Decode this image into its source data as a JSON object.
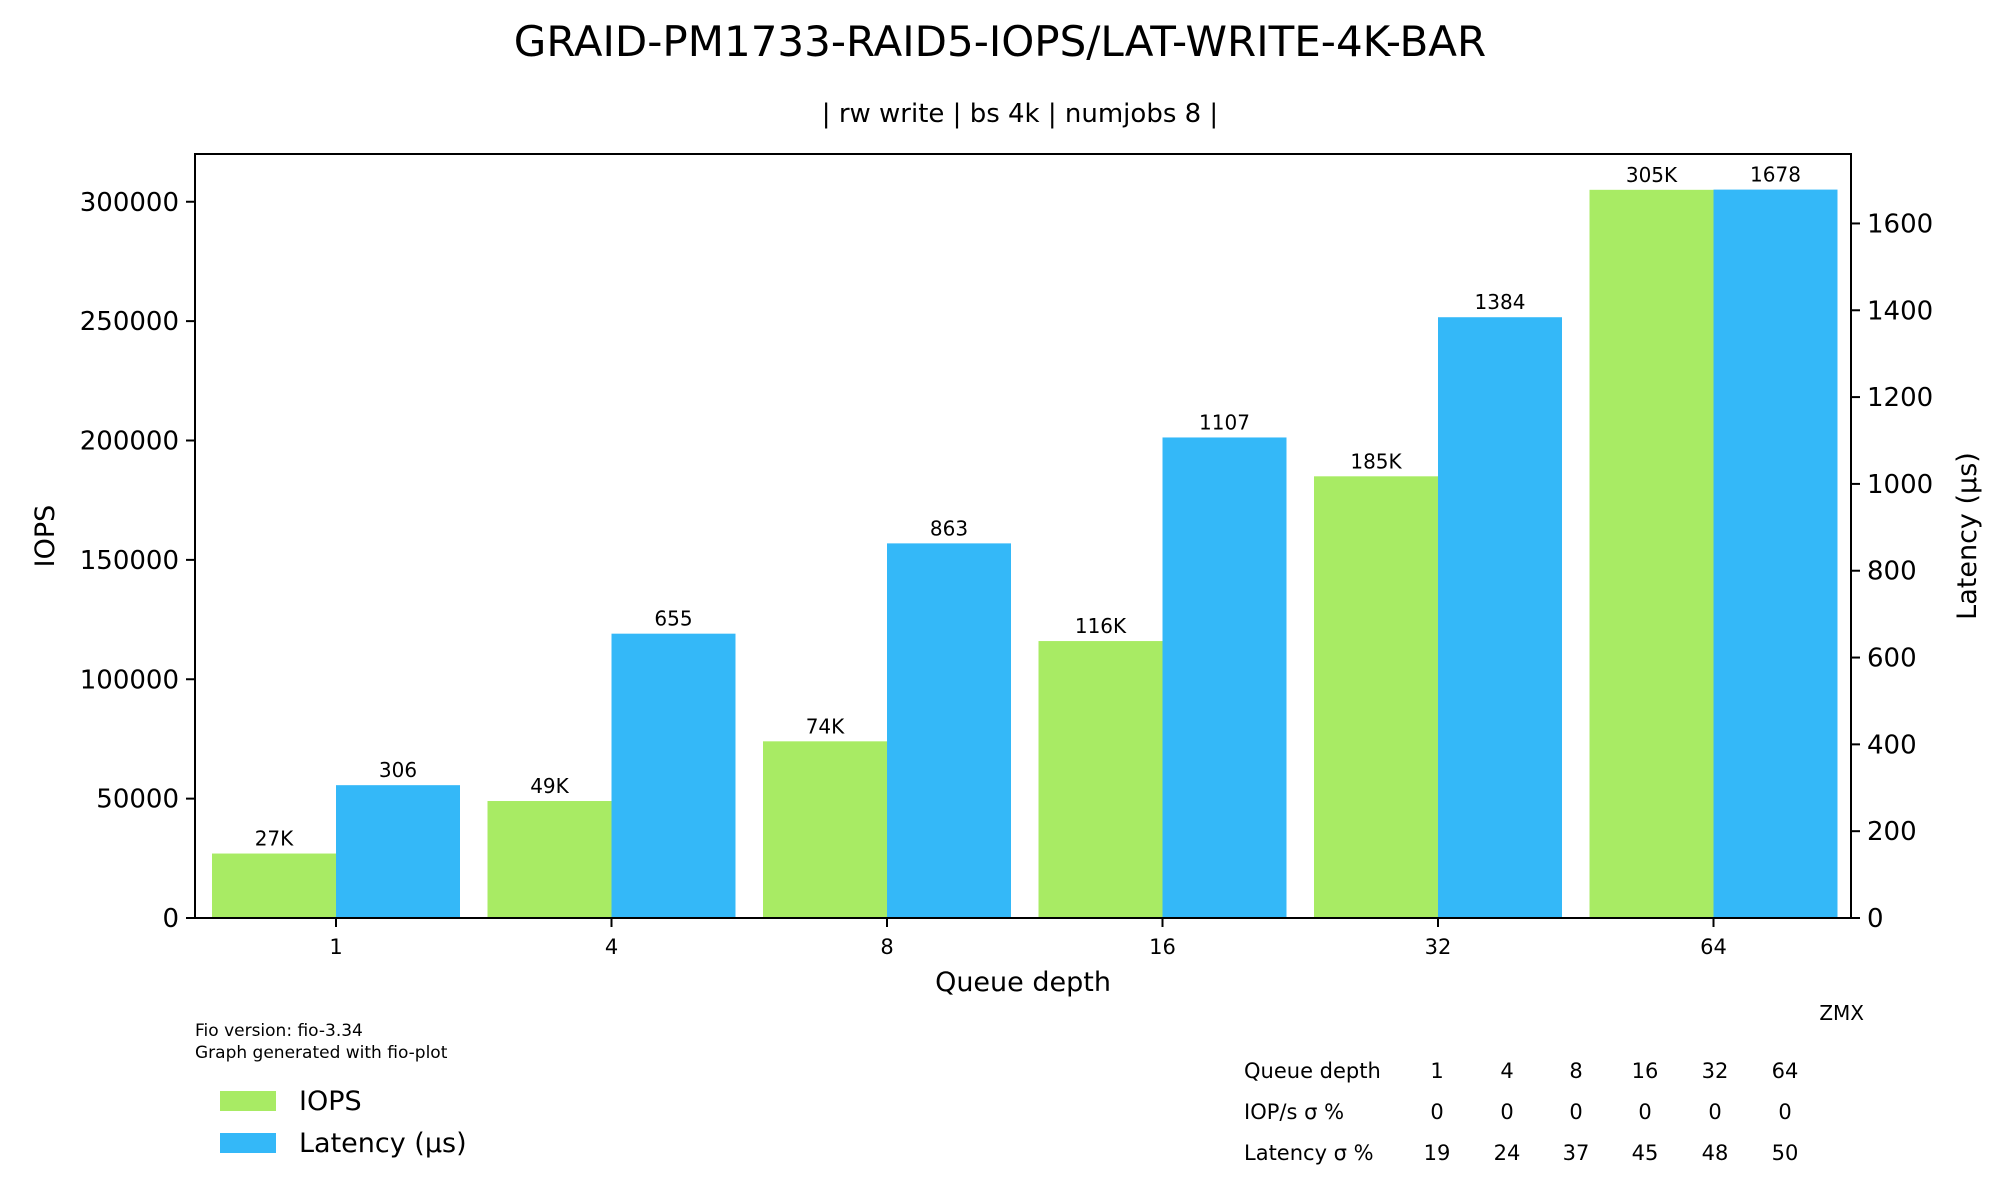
{
  "title": "GRAID-PM1733-RAID5-IOPS/LAT-WRITE-4K-BAR",
  "subtitle": "| rw write | bs 4k | numjobs 8 |",
  "chart_data": {
    "type": "bar",
    "categories": [
      "1",
      "4",
      "8",
      "16",
      "32",
      "64"
    ],
    "xlabel": "Queue depth",
    "ylabel_left": "IOPS",
    "ylabel_right": "Latency (µs)",
    "ylim_left": [
      0,
      320000
    ],
    "ylim_right": [
      0,
      1760
    ],
    "yticks_left": [
      "0",
      "50000",
      "100000",
      "150000",
      "200000",
      "250000",
      "300000"
    ],
    "yticks_left_values": [
      0,
      50000,
      100000,
      150000,
      200000,
      250000,
      300000
    ],
    "yticks_right": [
      "0",
      "200",
      "400",
      "600",
      "800",
      "1000",
      "1200",
      "1400",
      "1600"
    ],
    "yticks_right_values": [
      0,
      200,
      400,
      600,
      800,
      1000,
      1200,
      1400,
      1600
    ],
    "grid": false,
    "legend_position": "bottom-left",
    "series": [
      {
        "name": "IOPS",
        "axis": "left",
        "color": "#a8eb64",
        "values": [
          27000,
          49000,
          74000,
          116000,
          185000,
          305000
        ],
        "labels": [
          "27K",
          "49K",
          "74K",
          "116K",
          "185K",
          "305K"
        ]
      },
      {
        "name": "Latency (µs)",
        "axis": "right",
        "color": "#34b8f8",
        "values": [
          306,
          655,
          863,
          1107,
          1384,
          1678
        ],
        "labels": [
          "306",
          "655",
          "863",
          "1107",
          "1384",
          "1678"
        ]
      }
    ]
  },
  "footnote": {
    "line1": "Fio version: fio-3.34",
    "line2": "Graph generated with fio-plot"
  },
  "watermark": "ZMX",
  "stats_table": {
    "rows": [
      {
        "label": "Queue depth",
        "values": [
          "1",
          "4",
          "8",
          "16",
          "32",
          "64"
        ]
      },
      {
        "label": "IOP/s σ %",
        "values": [
          "0",
          "0",
          "0",
          "0",
          "0",
          "0"
        ]
      },
      {
        "label": "Latency σ %",
        "values": [
          "19",
          "24",
          "37",
          "45",
          "48",
          "50"
        ]
      }
    ]
  }
}
